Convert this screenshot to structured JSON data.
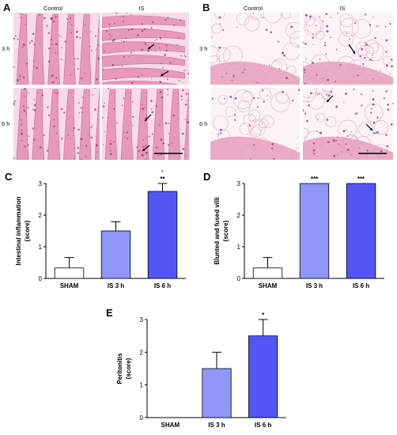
{
  "panels": {
    "A": {
      "letter": "A",
      "columns": [
        "Control",
        "IS"
      ],
      "rows": [
        "3 h",
        "6 h"
      ]
    },
    "B": {
      "letter": "B",
      "columns": [
        "Control",
        "IS"
      ],
      "rows": [
        "3 h",
        "6 h"
      ]
    }
  },
  "histology_colors": {
    "tissue": "#e79ab7",
    "light": "#f7dbe6",
    "nucleus": "#8a2e66",
    "background": "#fbf3f6"
  },
  "chart_data": [
    {
      "letter": "C",
      "type": "bar",
      "categories": [
        "SHAM",
        "IS 3 h",
        "IS 6 h"
      ],
      "values": [
        0.33,
        1.5,
        2.75
      ],
      "errors": [
        0.33,
        0.29,
        0.25
      ],
      "significance": [
        "",
        "",
        "**"
      ],
      "extra_marks": [
        "",
        "",
        "°"
      ],
      "colors": [
        "#ffffff",
        "#8f96f5",
        "#5356f2"
      ],
      "ylabel": "Intestinal inflammation\n(score)",
      "ylim": [
        0,
        3
      ],
      "yticks": [
        0,
        1,
        2,
        3
      ]
    },
    {
      "letter": "D",
      "type": "bar",
      "categories": [
        "SHAM",
        "IS 3 h",
        "IS 6 h"
      ],
      "values": [
        0.33,
        3,
        3
      ],
      "errors": [
        0.33,
        0,
        0
      ],
      "significance": [
        "",
        "***",
        "***"
      ],
      "extra_marks": [
        "",
        "",
        ""
      ],
      "colors": [
        "#ffffff",
        "#8f96f5",
        "#5356f2"
      ],
      "ylabel": "Blunted and fused villi\n(score)",
      "ylim": [
        0,
        3
      ],
      "yticks": [
        0,
        1,
        2,
        3
      ]
    },
    {
      "letter": "E",
      "type": "bar",
      "categories": [
        "SHAM",
        "IS 3 h",
        "IS 6 h"
      ],
      "values": [
        0,
        1.5,
        2.5
      ],
      "errors": [
        0,
        0.5,
        0.5
      ],
      "significance": [
        "",
        "",
        "*"
      ],
      "extra_marks": [
        "",
        "",
        ""
      ],
      "colors": [
        "#ffffff",
        "#8f96f5",
        "#5356f2"
      ],
      "ylabel": "Peritonitis\n(score)",
      "ylim": [
        0,
        3
      ],
      "yticks": [
        0,
        1,
        2,
        3
      ]
    }
  ]
}
